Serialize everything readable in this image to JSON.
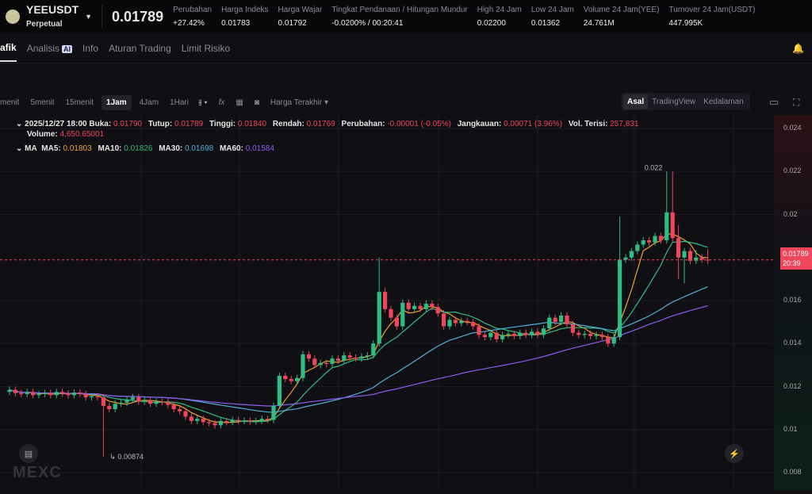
{
  "header": {
    "symbol": "YEEUSDT",
    "type": "Perpetual",
    "last_price": "0.01789",
    "stats": [
      {
        "label": "Perubahan",
        "value": "+27.42%",
        "tone": "green"
      },
      {
        "label": "Harga Indeks",
        "value": "0.01783"
      },
      {
        "label": "Harga Wajar",
        "value": "0.01792"
      },
      {
        "label": "Tingkat Pendanaan / Hitungan Mundur",
        "value": "-0.0200% / 00:20:41"
      },
      {
        "label": "High 24 Jam",
        "value": "0.02200"
      },
      {
        "label": "Low 24 Jam",
        "value": "0.01362"
      },
      {
        "label": "Volume 24 Jam(YEE)",
        "value": "24.761M"
      },
      {
        "label": "Turnover 24 Jam(USDT)",
        "value": "447.995K"
      }
    ]
  },
  "tabs": [
    {
      "label": "afik"
    },
    {
      "label": "Analisis",
      "badge": "AI"
    },
    {
      "label": "Info"
    },
    {
      "label": "Aturan Trading"
    },
    {
      "label": "Limit Risiko"
    }
  ],
  "toolbar": {
    "intervals": [
      "menit",
      "5menit",
      "15menit",
      "1Jam",
      "4Jam",
      "1Hari"
    ],
    "selected": "1Jam",
    "price_type": "Harga Terakhir",
    "views": [
      "Asal",
      "TradingView",
      "Kedalaman"
    ],
    "view_selected": "Asal"
  },
  "ohlc_legend": {
    "date": "2025/12/27 18:00",
    "open_label": "Buka:",
    "open": "0.01790",
    "close_label": "Tutup:",
    "close": "0.01789",
    "high_label": "Tinggi:",
    "high": "0.01840",
    "low_label": "Rendah:",
    "low": "0.01769",
    "change_label": "Perubahan:",
    "change": "-0.00001 (-0.05%)",
    "range_label": "Jangkauan:",
    "range": "0.00071 (3.96%)",
    "vol_filled_label": "Vol. Terisi:",
    "vol_filled": "257,831",
    "volume_label": "Volume:",
    "volume": "4,650.65001"
  },
  "ma_legend": {
    "title": "MA",
    "ma5_label": "MA5:",
    "ma5": "0.01803",
    "ma10_label": "MA10:",
    "ma10": "0.01826",
    "ma30_label": "MA30:",
    "ma30": "0.01698",
    "ma60_label": "MA60:",
    "ma60": "0.01584"
  },
  "colors": {
    "up": "#2ebd85",
    "down": "#f0465c",
    "ma5": "#f0a22e",
    "ma10": "#2ebd85",
    "ma30": "#4fb3d9",
    "ma60": "#8e5cf0"
  },
  "price_tag": {
    "price": "0.01789",
    "countdown": "20:39"
  },
  "annotations": {
    "high": "0.022",
    "low": "0.00874"
  },
  "brand": "MEXC",
  "chart_data": {
    "type": "candlestick",
    "interval": "1Jam",
    "ylim": [
      0.0075,
      0.0245
    ],
    "yticks": [
      "0.024",
      "0.022",
      "0.02",
      "0.016",
      "0.014",
      "0.012",
      "0.01",
      "0.008"
    ],
    "scale": 100000,
    "open": [
      1175,
      1185,
      1170,
      1165,
      1175,
      1160,
      1165,
      1170,
      1160,
      1175,
      1168,
      1160,
      1172,
      1165,
      1150,
      1155,
      1150,
      1110,
      1095,
      1120,
      1125,
      1140,
      1150,
      1130,
      1135,
      1120,
      1130,
      1128,
      1115,
      1095,
      1085,
      1060,
      1040,
      1050,
      1035,
      1030,
      1020,
      1040,
      1035,
      1045,
      1040,
      1042,
      1038,
      1040,
      1050,
      1045,
      1110,
      1250,
      1235,
      1225,
      1240,
      1350,
      1330,
      1300,
      1310,
      1305,
      1330,
      1320,
      1345,
      1335,
      1330,
      1340,
      1345,
      1400,
      1640,
      1560,
      1520,
      1480,
      1590,
      1560,
      1575,
      1560,
      1585,
      1570,
      1540,
      1480,
      1510,
      1495,
      1505,
      1500,
      1480,
      1440,
      1430,
      1450,
      1420,
      1440,
      1445,
      1435,
      1450,
      1440,
      1455,
      1440,
      1470,
      1520,
      1500,
      1530,
      1490,
      1450,
      1440,
      1445,
      1435,
      1440,
      1430,
      1400,
      1430,
      1790,
      1800,
      1830,
      1860,
      1880,
      1870,
      1900,
      1880,
      2010,
      1890,
      1800,
      1830,
      1785,
      1800,
      1790
    ],
    "high": [
      1200,
      1200,
      1185,
      1190,
      1190,
      1180,
      1185,
      1185,
      1190,
      1190,
      1183,
      1187,
      1187,
      1180,
      1170,
      1170,
      1165,
      1125,
      1135,
      1140,
      1155,
      1165,
      1165,
      1150,
      1150,
      1145,
      1145,
      1143,
      1130,
      1110,
      1100,
      1075,
      1065,
      1065,
      1050,
      1045,
      1055,
      1055,
      1060,
      1060,
      1057,
      1057,
      1055,
      1065,
      1065,
      1125,
      1265,
      1265,
      1250,
      1255,
      1365,
      1365,
      1345,
      1325,
      1325,
      1345,
      1345,
      1360,
      1360,
      1350,
      1355,
      1360,
      1415,
      1800,
      1660,
      1575,
      1535,
      1605,
      1605,
      1590,
      1590,
      1600,
      1600,
      1585,
      1555,
      1525,
      1525,
      1520,
      1520,
      1515,
      1495,
      1455,
      1465,
      1465,
      1455,
      1460,
      1460,
      1465,
      1465,
      1470,
      1470,
      1485,
      1535,
      1535,
      1545,
      1545,
      1505,
      1465,
      1460,
      1460,
      1455,
      1455,
      1445,
      1445,
      1990,
      1815,
      1845,
      1875,
      1895,
      1895,
      1915,
      1915,
      2200,
      2200,
      1950,
      1845,
      1845,
      1835,
      1815,
      1840
    ],
    "low": [
      1160,
      1155,
      1150,
      1150,
      1145,
      1145,
      1150,
      1145,
      1145,
      1153,
      1145,
      1145,
      1150,
      1135,
      1135,
      1135,
      874,
      1080,
      1080,
      1105,
      1110,
      1125,
      1115,
      1115,
      1105,
      1105,
      1113,
      1100,
      1080,
      1070,
      1045,
      1025,
      1025,
      1020,
      1015,
      1005,
      1005,
      1020,
      1020,
      1025,
      1025,
      1023,
      1023,
      1025,
      1030,
      1030,
      1095,
      1220,
      1210,
      1210,
      1225,
      1315,
      1285,
      1285,
      1290,
      1290,
      1305,
      1305,
      1320,
      1315,
      1315,
      1325,
      1330,
      1385,
      1545,
      1505,
      1465,
      1465,
      1545,
      1545,
      1545,
      1545,
      1555,
      1525,
      1465,
      1465,
      1480,
      1480,
      1485,
      1465,
      1425,
      1415,
      1415,
      1405,
      1405,
      1425,
      1420,
      1420,
      1425,
      1425,
      1425,
      1425,
      1455,
      1485,
      1485,
      1475,
      1435,
      1425,
      1425,
      1420,
      1420,
      1415,
      1385,
      1385,
      1415,
      1775,
      1785,
      1815,
      1845,
      1855,
      1855,
      1865,
      1865,
      1875,
      1700,
      1680,
      1770,
      1770,
      1775,
      1769
    ],
    "close": [
      1185,
      1170,
      1165,
      1175,
      1160,
      1165,
      1170,
      1160,
      1175,
      1168,
      1160,
      1172,
      1165,
      1150,
      1155,
      1150,
      1110,
      1095,
      1120,
      1125,
      1140,
      1150,
      1130,
      1135,
      1120,
      1130,
      1128,
      1115,
      1095,
      1085,
      1060,
      1040,
      1050,
      1035,
      1030,
      1020,
      1040,
      1035,
      1045,
      1040,
      1042,
      1038,
      1040,
      1050,
      1045,
      1110,
      1250,
      1235,
      1225,
      1240,
      1350,
      1330,
      1300,
      1310,
      1305,
      1330,
      1320,
      1345,
      1335,
      1330,
      1340,
      1345,
      1400,
      1640,
      1560,
      1520,
      1480,
      1590,
      1560,
      1575,
      1560,
      1585,
      1570,
      1540,
      1480,
      1510,
      1495,
      1505,
      1500,
      1480,
      1440,
      1430,
      1450,
      1420,
      1440,
      1445,
      1435,
      1450,
      1440,
      1455,
      1440,
      1470,
      1520,
      1500,
      1530,
      1490,
      1450,
      1440,
      1445,
      1435,
      1440,
      1430,
      1400,
      1430,
      1790,
      1800,
      1830,
      1860,
      1880,
      1870,
      1900,
      1880,
      2010,
      1890,
      1800,
      1830,
      1785,
      1800,
      1790,
      1789
    ],
    "ma_periods": [
      5,
      10,
      30,
      60
    ]
  }
}
